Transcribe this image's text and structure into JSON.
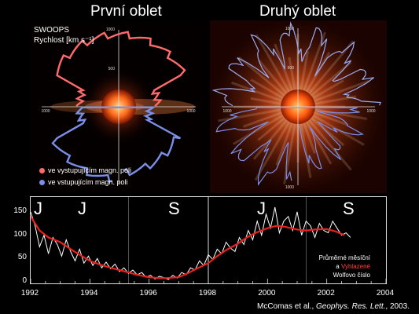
{
  "titles": {
    "first": "První oblet",
    "second": "Druhý oblet"
  },
  "swoops": {
    "name": "SWOOPS",
    "unit_label": "Rychlost [km s⁻¹]"
  },
  "polar_ticks": {
    "top": "1000",
    "mid": "500",
    "left": "1000",
    "right": "1000",
    "bottom": "1000"
  },
  "legend": {
    "items": [
      {
        "label": "ve vystupujícím magn. poli",
        "color": "#ff6b6b"
      },
      {
        "label": "ve vstupujícím magn. poli",
        "color": "#7a8fe8"
      }
    ]
  },
  "cycle_labels": [
    "J",
    "S",
    "J",
    "S"
  ],
  "note": {
    "line1": "Průměrné měsíční",
    "line2_prefix": "a ",
    "line2_red": "Vyhlazené",
    "line3": "Wolfovo číslo"
  },
  "citation": {
    "prefix": "McComas et al., ",
    "journal": "Geophys. Res. Lett.",
    "suffix": ", 2003."
  },
  "colors": {
    "smoothed": "#e8221d",
    "monthly": "#ffffff",
    "sun": "#ff5a1a"
  },
  "chart_data": {
    "type": "line",
    "xlim": [
      1992,
      2004
    ],
    "ylim": [
      0,
      175
    ],
    "x_ticks": [
      "1992",
      "1994",
      "1996",
      "1998",
      "2000",
      "2002",
      "2004"
    ],
    "y_ticks": [
      "0",
      "50",
      "100",
      "150"
    ],
    "series": [
      {
        "x": [
          1992.0,
          1992.3,
          1992.6,
          1993.0,
          1993.3,
          1993.6,
          1994.0,
          1994.3,
          1994.6,
          1995.0,
          1995.3,
          1995.6,
          1996.0,
          1996.3,
          1996.6,
          1997.0,
          1997.3,
          1997.6,
          1998.0,
          1998.3,
          1998.6,
          1999.0,
          1999.3,
          1999.6,
          2000.0,
          2000.3,
          2000.6,
          2001.0,
          2001.3,
          2001.6,
          2002.0,
          2002.3,
          2002.6
        ],
        "values": [
          140,
          110,
          95,
          85,
          72,
          60,
          45,
          38,
          32,
          25,
          20,
          15,
          10,
          8,
          8,
          10,
          18,
          28,
          40,
          55,
          68,
          82,
          95,
          105,
          115,
          120,
          118,
          112,
          110,
          112,
          113,
          108,
          100
        ]
      },
      {
        "x": [
          1992.0,
          1992.15,
          1992.3,
          1992.45,
          1992.6,
          1992.75,
          1992.9,
          1993.05,
          1993.2,
          1993.35,
          1993.5,
          1993.65,
          1993.8,
          1993.95,
          1994.1,
          1994.25,
          1994.4,
          1994.55,
          1994.7,
          1994.85,
          1995.0,
          1995.15,
          1995.3,
          1995.45,
          1995.6,
          1995.75,
          1995.9,
          1996.05,
          1996.2,
          1996.35,
          1996.5,
          1996.65,
          1996.8,
          1996.95,
          1997.1,
          1997.25,
          1997.4,
          1997.55,
          1997.7,
          1997.85,
          1998.0,
          1998.15,
          1998.3,
          1998.45,
          1998.6,
          1998.75,
          1998.9,
          1999.05,
          1999.2,
          1999.35,
          1999.5,
          1999.65,
          1999.8,
          1999.95,
          2000.1,
          2000.25,
          2000.4,
          2000.55,
          2000.7,
          2000.85,
          2001.0,
          2001.15,
          2001.3,
          2001.45,
          2001.6,
          2001.75,
          2001.9,
          2002.05,
          2002.2,
          2002.35,
          2002.5,
          2002.65,
          2002.8
        ],
        "values": [
          150,
          120,
          75,
          100,
          60,
          95,
          80,
          55,
          90,
          65,
          45,
          70,
          40,
          55,
          35,
          50,
          30,
          42,
          28,
          38,
          22,
          30,
          18,
          25,
          15,
          20,
          10,
          14,
          6,
          12,
          9,
          5,
          14,
          8,
          20,
          15,
          30,
          25,
          45,
          35,
          58,
          48,
          70,
          60,
          85,
          72,
          65,
          95,
          80,
          110,
          90,
          130,
          100,
          145,
          115,
          160,
          105,
          130,
          140,
          110,
          150,
          100,
          130,
          120,
          95,
          125,
          110,
          105,
          130,
          115,
          100,
          105,
          95
        ]
      }
    ]
  }
}
